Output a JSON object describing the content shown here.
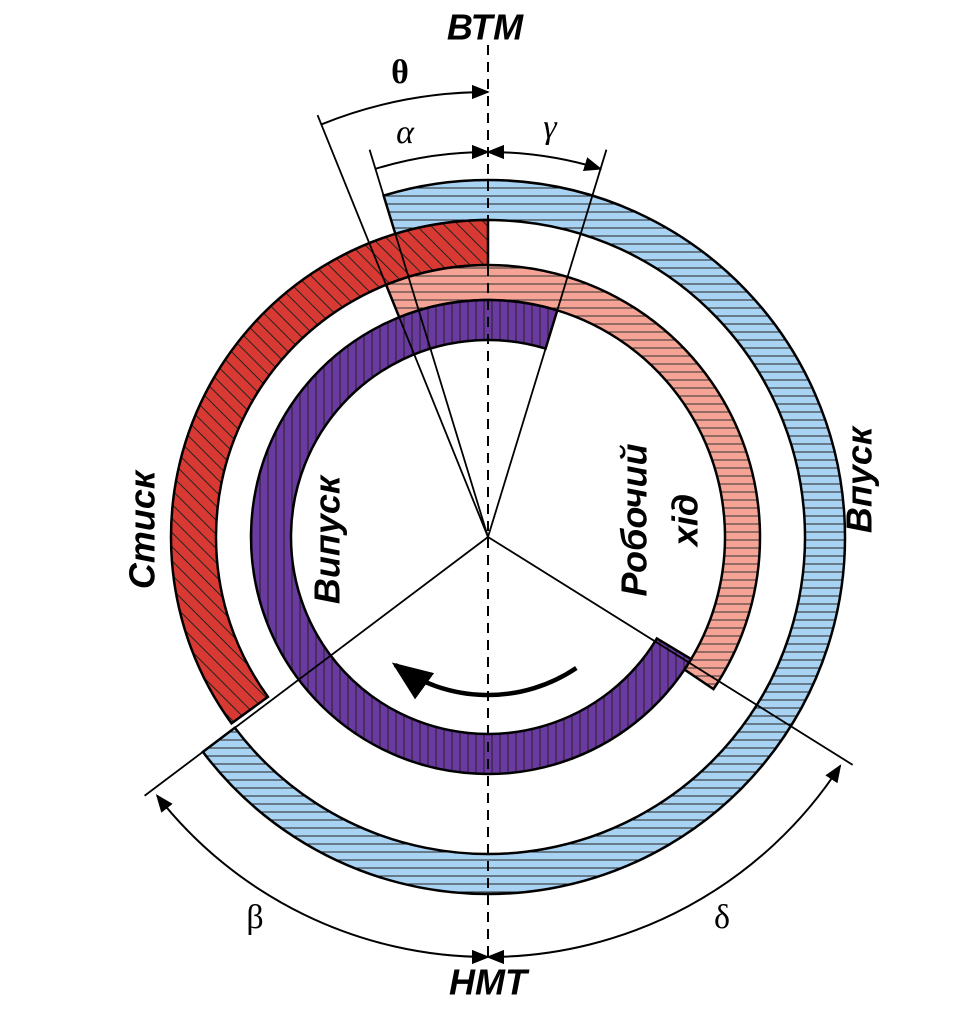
{
  "top_label": "ВТМ",
  "bottom_label": "НМТ",
  "angles": {
    "theta": "θ",
    "alpha": "α",
    "gamma": "γ",
    "beta": "β",
    "delta": "δ"
  },
  "strokes": {
    "compression": "Стиск",
    "exhaust": "Випуск",
    "power_line1": "Робочий",
    "power_line2": "хід",
    "intake": "Впуск"
  }
}
